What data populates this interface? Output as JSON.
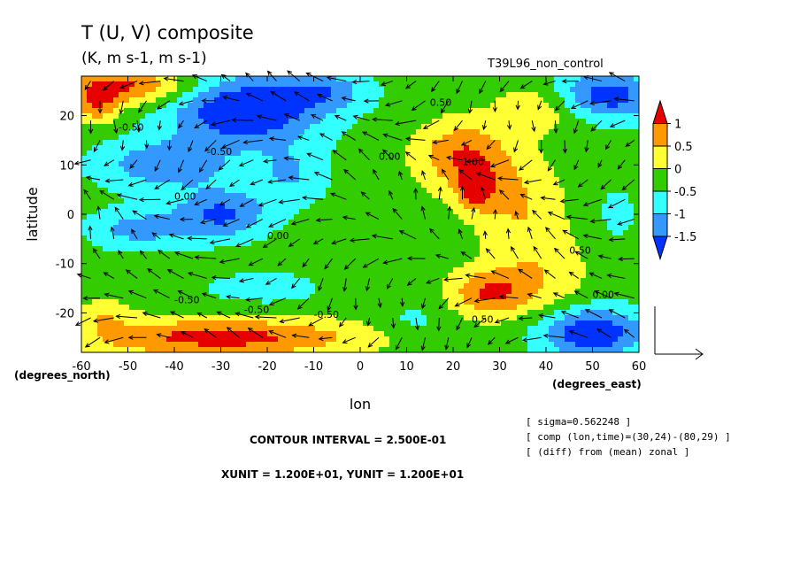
{
  "chart_data": {
    "type": "heatmap",
    "title": "T (U, V) composite",
    "subtitle": "(K, m s-1, m s-1)",
    "run_label": "T39L96_non_control",
    "xlabel": "lon",
    "ylabel": "latitude",
    "x_unit_label": "(degrees_east)",
    "y_unit_label": "(degrees_north)",
    "xlim": [
      -60,
      60
    ],
    "ylim": [
      -28,
      28
    ],
    "x_ticks": [
      -60,
      -50,
      -40,
      -30,
      -20,
      -10,
      0,
      10,
      20,
      30,
      40,
      50,
      60
    ],
    "x_tick_labels": [
      "-60",
      "-50",
      "-40",
      "-30",
      "-20",
      "-10",
      "0",
      "10",
      "20",
      "30",
      "40",
      "50",
      "60"
    ],
    "y_ticks": [
      -20,
      -10,
      0,
      10,
      20
    ],
    "y_tick_labels": [
      "-20",
      "-10",
      "0",
      "10",
      "20"
    ],
    "colorbar": {
      "labels": [
        "1",
        "0.5",
        "0",
        "-0.5",
        "-1",
        "-1.5"
      ],
      "levels": [
        1,
        0.5,
        0,
        -0.5,
        -1,
        -1.5
      ],
      "colors": [
        "#e60000",
        "#ff9900",
        "#ffff33",
        "#33cc00",
        "#33ffff",
        "#3399ff",
        "#0033ff"
      ]
    },
    "contour_interval_text": "CONTOUR INTERVAL = 2.500E-01",
    "vector_unit_text": "XUNIT = 1.200E+01, YUNIT = 1.200E+01",
    "notes": [
      "[ sigma=0.562248 ]",
      "[ comp (lon,time)=(30,24)-(80,29) ]",
      "[ (diff) from (mean) zonal ]"
    ],
    "contour_labels": [
      {
        "text": "-0.50",
        "lon": -52,
        "lat": 17
      },
      {
        "text": "-0.50",
        "lon": -33,
        "lat": 12
      },
      {
        "text": "0.00",
        "lon": 4,
        "lat": 11
      },
      {
        "text": "0.00",
        "lon": -40,
        "lat": 3
      },
      {
        "text": "1.00",
        "lon": 22,
        "lat": 10
      },
      {
        "text": "0.50",
        "lon": 15,
        "lat": 22
      },
      {
        "text": "0.00",
        "lon": -20,
        "lat": -5
      },
      {
        "text": "0.50",
        "lon": 45,
        "lat": -8
      },
      {
        "text": "-0.50",
        "lon": -40,
        "lat": -18
      },
      {
        "text": "-0.50",
        "lon": -25,
        "lat": -20
      },
      {
        "text": "-0.50",
        "lon": -10,
        "lat": -21
      },
      {
        "text": "0.50",
        "lon": 24,
        "lat": -22
      },
      {
        "text": "0.00",
        "lon": 50,
        "lat": -17
      }
    ],
    "field_blobs": [
      {
        "lon": -50,
        "lat": 26,
        "rx": 14,
        "ry": 4,
        "v": 1.4
      },
      {
        "lon": -57,
        "lat": 22,
        "rx": 5,
        "ry": 4,
        "v": 1.0
      },
      {
        "lon": -25,
        "lat": 21,
        "rx": 16,
        "ry": 7,
        "v": -1.8
      },
      {
        "lon": -8,
        "lat": 25,
        "rx": 10,
        "ry": 4,
        "v": -0.9
      },
      {
        "lon": 52,
        "lat": 24,
        "rx": 12,
        "ry": 5,
        "v": -1.6
      },
      {
        "lon": 40,
        "lat": 22,
        "rx": 10,
        "ry": 5,
        "v": 0.9
      },
      {
        "lon": -42,
        "lat": 10,
        "rx": 14,
        "ry": 5,
        "v": -1.1
      },
      {
        "lon": -30,
        "lat": 0,
        "rx": 10,
        "ry": 5,
        "v": -1.3
      },
      {
        "lon": -48,
        "lat": -3,
        "rx": 10,
        "ry": 4,
        "v": -0.9
      },
      {
        "lon": -15,
        "lat": 8,
        "rx": 8,
        "ry": 6,
        "v": -0.7
      },
      {
        "lon": 22,
        "lat": 12,
        "rx": 10,
        "ry": 7,
        "v": 1.3
      },
      {
        "lon": 25,
        "lat": 5,
        "rx": 4,
        "ry": 4,
        "v": 1.2
      },
      {
        "lon": 34,
        "lat": 2,
        "rx": 10,
        "ry": 10,
        "v": 0.8
      },
      {
        "lon": 8,
        "lat": 0,
        "rx": 8,
        "ry": 5,
        "v": 0.2
      },
      {
        "lon": 0,
        "lat": -12,
        "rx": 10,
        "ry": 4,
        "v": 0.3
      },
      {
        "lon": 28,
        "lat": -16,
        "rx": 9,
        "ry": 5,
        "v": 1.3
      },
      {
        "lon": 40,
        "lat": -12,
        "rx": 10,
        "ry": 8,
        "v": 0.6
      },
      {
        "lon": 55,
        "lat": 0,
        "rx": 6,
        "ry": 8,
        "v": -0.3
      },
      {
        "lon": 50,
        "lat": -24,
        "rx": 11,
        "ry": 5,
        "v": -1.7
      },
      {
        "lon": -30,
        "lat": -25,
        "rx": 32,
        "ry": 4,
        "v": 1.5
      },
      {
        "lon": -55,
        "lat": -20,
        "rx": 6,
        "ry": 3,
        "v": 0.6
      },
      {
        "lon": -20,
        "lat": -15,
        "rx": 12,
        "ry": 3,
        "v": -0.6
      },
      {
        "lon": 12,
        "lat": -22,
        "rx": 8,
        "ry": 4,
        "v": -0.4
      }
    ],
    "field_background": -0.3,
    "wind_grid": {
      "lon_start": -58,
      "lon_step": 5,
      "lon_count": 24,
      "lat_start": 27,
      "lat_step": -4,
      "lat_count": 14
    }
  }
}
